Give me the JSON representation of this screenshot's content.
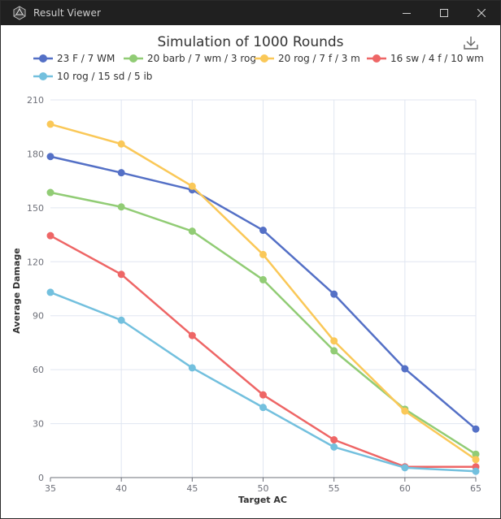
{
  "window": {
    "title": "Result Viewer",
    "icon": "dice-app-icon",
    "controls": [
      "minimize-icon",
      "maximize-icon",
      "close-icon"
    ]
  },
  "toolbox": {
    "icon": "download-icon"
  },
  "chart_data": {
    "type": "line",
    "title": "Simulation of 1000 Rounds",
    "xlabel": "Target AC",
    "ylabel": "Average Damage",
    "categories": [
      "35",
      "40",
      "45",
      "50",
      "55",
      "60",
      "65"
    ],
    "yticks": [
      "0",
      "30",
      "60",
      "90",
      "120",
      "150",
      "180",
      "210"
    ],
    "ylim": [
      0,
      210
    ],
    "grid": true,
    "legend_position": "top",
    "series": [
      {
        "name": "23 F / 7 WM",
        "color": "#5470c6",
        "values": [
          178.5,
          169.5,
          160,
          137.5,
          102,
          60.5,
          27
        ]
      },
      {
        "name": "20 barb / 7 wm / 3 rog",
        "color": "#91cc75",
        "values": [
          158.5,
          150.5,
          137,
          110,
          70.5,
          38,
          13
        ]
      },
      {
        "name": "20 rog / 7 f / 3 m",
        "color": "#fac858",
        "values": [
          196.5,
          185.5,
          162,
          124,
          76,
          37,
          10
        ]
      },
      {
        "name": "16 sw / 4 f / 10 wm",
        "color": "#ee6666",
        "values": [
          134.5,
          113,
          79,
          46,
          21,
          6,
          6
        ]
      },
      {
        "name": "10 rog / 15 sd / 5 ib",
        "color": "#73c0de",
        "values": [
          103,
          87.5,
          61,
          39,
          17,
          5.5,
          3.5
        ]
      }
    ]
  }
}
